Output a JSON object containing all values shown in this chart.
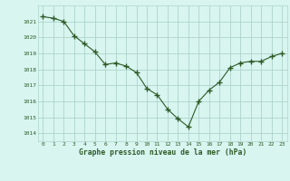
{
  "x": [
    0,
    1,
    2,
    3,
    4,
    5,
    6,
    7,
    8,
    9,
    10,
    11,
    12,
    13,
    14,
    15,
    16,
    17,
    18,
    19,
    20,
    21,
    22,
    23
  ],
  "y": [
    1021.3,
    1021.2,
    1021.0,
    1020.1,
    1019.6,
    1019.1,
    1018.3,
    1018.4,
    1018.2,
    1017.8,
    1016.8,
    1016.4,
    1015.5,
    1014.9,
    1014.4,
    1016.0,
    1016.7,
    1017.2,
    1018.1,
    1018.4,
    1018.5,
    1018.5,
    1018.8,
    1019.0
  ],
  "line_color": "#2d5a27",
  "marker_color": "#2d5a27",
  "bg_color": "#d8f5f0",
  "grid_color": "#aed4cc",
  "xlabel": "Graphe pression niveau de la mer (hPa)",
  "xlabel_color": "#2d5a27",
  "tick_color": "#2d5a27",
  "ylim_min": 1013.5,
  "ylim_max": 1022.0,
  "yticks": [
    1014,
    1015,
    1016,
    1017,
    1018,
    1019,
    1020,
    1021
  ],
  "xticks": [
    0,
    1,
    2,
    3,
    4,
    5,
    6,
    7,
    8,
    9,
    10,
    11,
    12,
    13,
    14,
    15,
    16,
    17,
    18,
    19,
    20,
    21,
    22,
    23
  ]
}
